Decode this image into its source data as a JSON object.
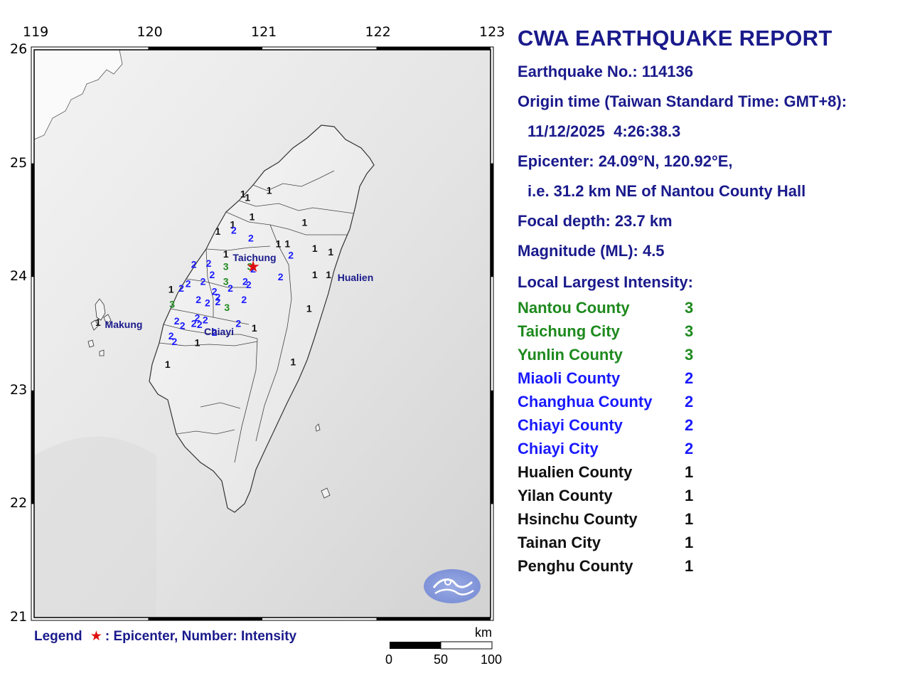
{
  "map": {
    "lon_ticks": [
      "119",
      "120",
      "121",
      "122",
      "123"
    ],
    "lat_ticks": [
      "26",
      "25",
      "24",
      "23",
      "22",
      "21"
    ],
    "place_labels": [
      "Taichung",
      "Hualien",
      "Makung",
      "Chiayi"
    ],
    "epicenter": {
      "lat": 24.09,
      "lon": 120.92,
      "icon": "red-star"
    },
    "station_intensities": [
      {
        "lat": 24.73,
        "lon": 121.06,
        "v": "1"
      },
      {
        "lat": 24.7,
        "lon": 120.83,
        "v": "1"
      },
      {
        "lat": 24.67,
        "lon": 120.87,
        "v": "1"
      },
      {
        "lat": 24.5,
        "lon": 120.91,
        "v": "1"
      },
      {
        "lat": 24.45,
        "lon": 121.37,
        "v": "1"
      },
      {
        "lat": 24.43,
        "lon": 120.74,
        "v": "1"
      },
      {
        "lat": 24.37,
        "lon": 120.61,
        "v": "1"
      },
      {
        "lat": 24.38,
        "lon": 120.75,
        "v": "2"
      },
      {
        "lat": 24.31,
        "lon": 120.9,
        "v": "2"
      },
      {
        "lat": 24.26,
        "lon": 121.14,
        "v": "1"
      },
      {
        "lat": 24.26,
        "lon": 121.22,
        "v": "1"
      },
      {
        "lat": 24.22,
        "lon": 121.46,
        "v": "1"
      },
      {
        "lat": 24.19,
        "lon": 121.6,
        "v": "1"
      },
      {
        "lat": 24.16,
        "lon": 121.25,
        "v": "2"
      },
      {
        "lat": 24.17,
        "lon": 120.68,
        "v": "1"
      },
      {
        "lat": 24.08,
        "lon": 120.4,
        "v": "2"
      },
      {
        "lat": 24.09,
        "lon": 120.53,
        "v": "2"
      },
      {
        "lat": 24.06,
        "lon": 120.68,
        "v": "3"
      },
      {
        "lat": 24.06,
        "lon": 120.89,
        "v": "3"
      },
      {
        "lat": 24.04,
        "lon": 120.92,
        "v": "2"
      },
      {
        "lat": 23.99,
        "lon": 120.56,
        "v": "2"
      },
      {
        "lat": 23.99,
        "lon": 121.46,
        "v": "1"
      },
      {
        "lat": 23.99,
        "lon": 121.58,
        "v": "1"
      },
      {
        "lat": 23.97,
        "lon": 121.16,
        "v": "2"
      },
      {
        "lat": 23.93,
        "lon": 120.68,
        "v": "3"
      },
      {
        "lat": 23.93,
        "lon": 120.85,
        "v": "2"
      },
      {
        "lat": 23.9,
        "lon": 120.88,
        "v": "2"
      },
      {
        "lat": 23.91,
        "lon": 120.35,
        "v": "2"
      },
      {
        "lat": 23.93,
        "lon": 120.48,
        "v": "2"
      },
      {
        "lat": 23.87,
        "lon": 120.29,
        "v": "2"
      },
      {
        "lat": 23.86,
        "lon": 120.2,
        "v": "1"
      },
      {
        "lat": 23.87,
        "lon": 120.72,
        "v": "2"
      },
      {
        "lat": 23.84,
        "lon": 120.58,
        "v": "2"
      },
      {
        "lat": 23.79,
        "lon": 120.61,
        "v": "2"
      },
      {
        "lat": 23.77,
        "lon": 120.84,
        "v": "2"
      },
      {
        "lat": 23.77,
        "lon": 120.44,
        "v": "2"
      },
      {
        "lat": 23.73,
        "lon": 120.21,
        "v": "3"
      },
      {
        "lat": 23.74,
        "lon": 120.52,
        "v": "2"
      },
      {
        "lat": 23.75,
        "lon": 120.61,
        "v": "2"
      },
      {
        "lat": 23.7,
        "lon": 120.69,
        "v": "3"
      },
      {
        "lat": 23.69,
        "lon": 121.41,
        "v": "1"
      },
      {
        "lat": 23.61,
        "lon": 120.43,
        "v": "2"
      },
      {
        "lat": 23.59,
        "lon": 120.5,
        "v": "2"
      },
      {
        "lat": 23.58,
        "lon": 120.25,
        "v": "2"
      },
      {
        "lat": 23.57,
        "lon": 119.56,
        "v": "1"
      },
      {
        "lat": 23.56,
        "lon": 120.4,
        "v": "2"
      },
      {
        "lat": 23.55,
        "lon": 120.45,
        "v": "2"
      },
      {
        "lat": 23.54,
        "lon": 120.3,
        "v": "2"
      },
      {
        "lat": 23.56,
        "lon": 120.79,
        "v": "2"
      },
      {
        "lat": 23.52,
        "lon": 120.93,
        "v": "1"
      },
      {
        "lat": 23.45,
        "lon": 120.2,
        "v": "2"
      },
      {
        "lat": 23.48,
        "lon": 120.58,
        "v": "2"
      },
      {
        "lat": 23.4,
        "lon": 120.23,
        "v": "2"
      },
      {
        "lat": 23.39,
        "lon": 120.43,
        "v": "1"
      },
      {
        "lat": 23.2,
        "lon": 120.17,
        "v": "1"
      },
      {
        "lat": 23.22,
        "lon": 121.27,
        "v": "1"
      }
    ],
    "intensity_colors": {
      "1": "#111111",
      "2": "#1a1aff",
      "3": "#1e8a1e"
    },
    "watermark_icon": "cwa-logo-icon"
  },
  "legend": {
    "title": "Legend",
    "text": ": Epicenter, Number: Intensity"
  },
  "scalebar": {
    "unit": "km",
    "labels": [
      "0",
      "50",
      "100"
    ]
  },
  "report": {
    "title": "CWA EARTHQUAKE REPORT",
    "earthquake_no": "Earthquake No.: 114136",
    "origin_time_label": "Origin time (Taiwan Standard Time: GMT+8):",
    "origin_time": "11/12/2025  4:26:38.3",
    "epicenter": "Epicenter: 24.09°N, 120.92°E,",
    "epicenter_desc": "i.e. 31.2 km NE of Nantou County Hall",
    "focal_depth": "Focal depth: 23.7 km",
    "magnitude": "Magnitude (ML): 4.5",
    "local_largest_label": "Local Largest Intensity:",
    "intensities": [
      {
        "county": "Nantou County",
        "value": "3"
      },
      {
        "county": "Taichung City",
        "value": "3"
      },
      {
        "county": "Yunlin County",
        "value": "3"
      },
      {
        "county": "Miaoli County",
        "value": "2"
      },
      {
        "county": "Changhua County",
        "value": "2"
      },
      {
        "county": "Chiayi County",
        "value": "2"
      },
      {
        "county": "Chiayi City",
        "value": "2"
      },
      {
        "county": "Hualien County",
        "value": "1"
      },
      {
        "county": "Yilan County",
        "value": "1"
      },
      {
        "county": "Hsinchu County",
        "value": "1"
      },
      {
        "county": "Tainan City",
        "value": "1"
      },
      {
        "county": "Penghu County",
        "value": "1"
      }
    ]
  }
}
